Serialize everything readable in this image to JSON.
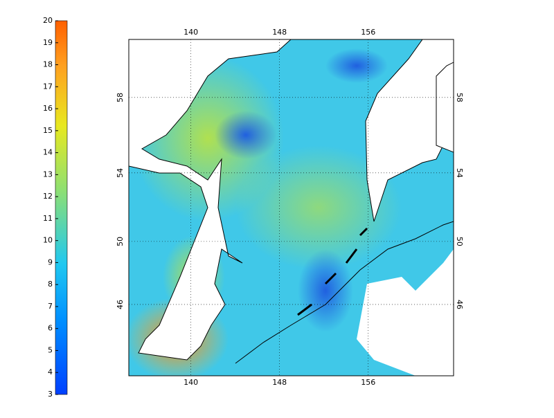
{
  "colorbar": {
    "clim": [
      3,
      20
    ],
    "ticks": [
      3,
      4,
      5,
      6,
      7,
      8,
      9,
      10,
      11,
      12,
      13,
      14,
      15,
      16,
      17,
      18,
      19,
      20
    ]
  },
  "map": {
    "xlim": [
      134.4,
      163.7
    ],
    "ylim": [
      41.1,
      60.8
    ],
    "xticks": [
      140,
      148,
      156
    ],
    "yticks": [
      46,
      50,
      54,
      58
    ]
  }
}
